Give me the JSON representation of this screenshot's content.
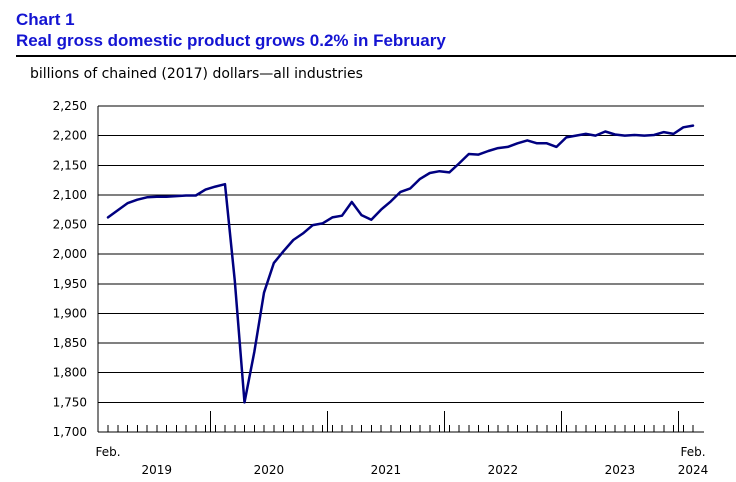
{
  "header": {
    "chart_label": "Chart 1",
    "title": "Real gross domestic product grows 0.2% in February",
    "unit_label": "billions of chained (2017) dollars—all industries"
  },
  "colors": {
    "title": "#1414d2",
    "series": "#000080",
    "grid": "#000000"
  },
  "chart_data": {
    "type": "line",
    "title": "Real gross domestic product grows 0.2% in February",
    "ylabel": "billions of chained (2017) dollars—all industries",
    "xlabel": "",
    "ylim": [
      1700,
      2250
    ],
    "yticks": [
      1700,
      1750,
      1800,
      1850,
      1900,
      1950,
      2000,
      2050,
      2100,
      2150,
      2200,
      2250
    ],
    "ytick_labels": [
      "1,700",
      "1,750",
      "1,800",
      "1,850",
      "1,900",
      "1,950",
      "2,000",
      "2,050",
      "2,100",
      "2,150",
      "2,200",
      "2,250"
    ],
    "grid": true,
    "x_start": "Feb. 2019",
    "x_end": "Feb. 2024",
    "x_period_labels": [
      {
        "label": "Feb.",
        "index": 0
      },
      {
        "label": "Feb.",
        "index": 60
      }
    ],
    "x_year_labels": [
      {
        "label": "2019",
        "index": 5
      },
      {
        "label": "2020",
        "index": 16.5
      },
      {
        "label": "2021",
        "index": 28.5
      },
      {
        "label": "2022",
        "index": 40.5
      },
      {
        "label": "2023",
        "index": 52.5
      },
      {
        "label": "2024",
        "index": 60
      }
    ],
    "year_boundaries": [
      10.5,
      22.5,
      34.5,
      46.5,
      58.5
    ],
    "series": [
      {
        "name": "Real GDP, all industries",
        "values": [
          2062,
          2074,
          2086,
          2092,
          2096,
          2097,
          2097,
          2098,
          2099,
          2099,
          2109,
          2114,
          2118,
          1955,
          1750,
          1835,
          1935,
          1985,
          2005,
          2024,
          2035,
          2049,
          2052,
          2062,
          2065,
          2088,
          2066,
          2058,
          2075,
          2089,
          2105,
          2111,
          2127,
          2137,
          2140,
          2138,
          2153,
          2169,
          2168,
          2174,
          2179,
          2181,
          2187,
          2192,
          2187,
          2187,
          2181,
          2197,
          2200,
          2203,
          2200,
          2207,
          2202,
          2200,
          2201,
          2200,
          2201,
          2206,
          2203,
          2214,
          2217
        ]
      }
    ]
  }
}
